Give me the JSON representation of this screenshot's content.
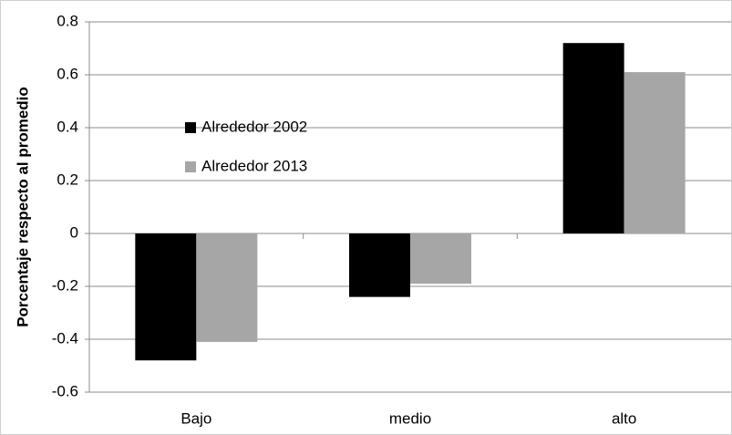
{
  "chart_data": {
    "type": "bar",
    "y_label": "Porcentaje respecto al promedio",
    "categories": [
      "Bajo",
      "medio",
      "alto"
    ],
    "series": [
      {
        "name": "Alrededor 2002",
        "color": "#000000",
        "values": [
          -0.48,
          -0.24,
          0.72
        ]
      },
      {
        "name": "Alrededor 2013",
        "color": "#a6a6a6",
        "values": [
          -0.41,
          -0.19,
          0.61
        ]
      }
    ],
    "ylim": [
      -0.6,
      0.8
    ],
    "yticks": [
      -0.6,
      -0.4,
      -0.2,
      0,
      0.2,
      0.4,
      0.6,
      0.8
    ],
    "grid": true
  }
}
